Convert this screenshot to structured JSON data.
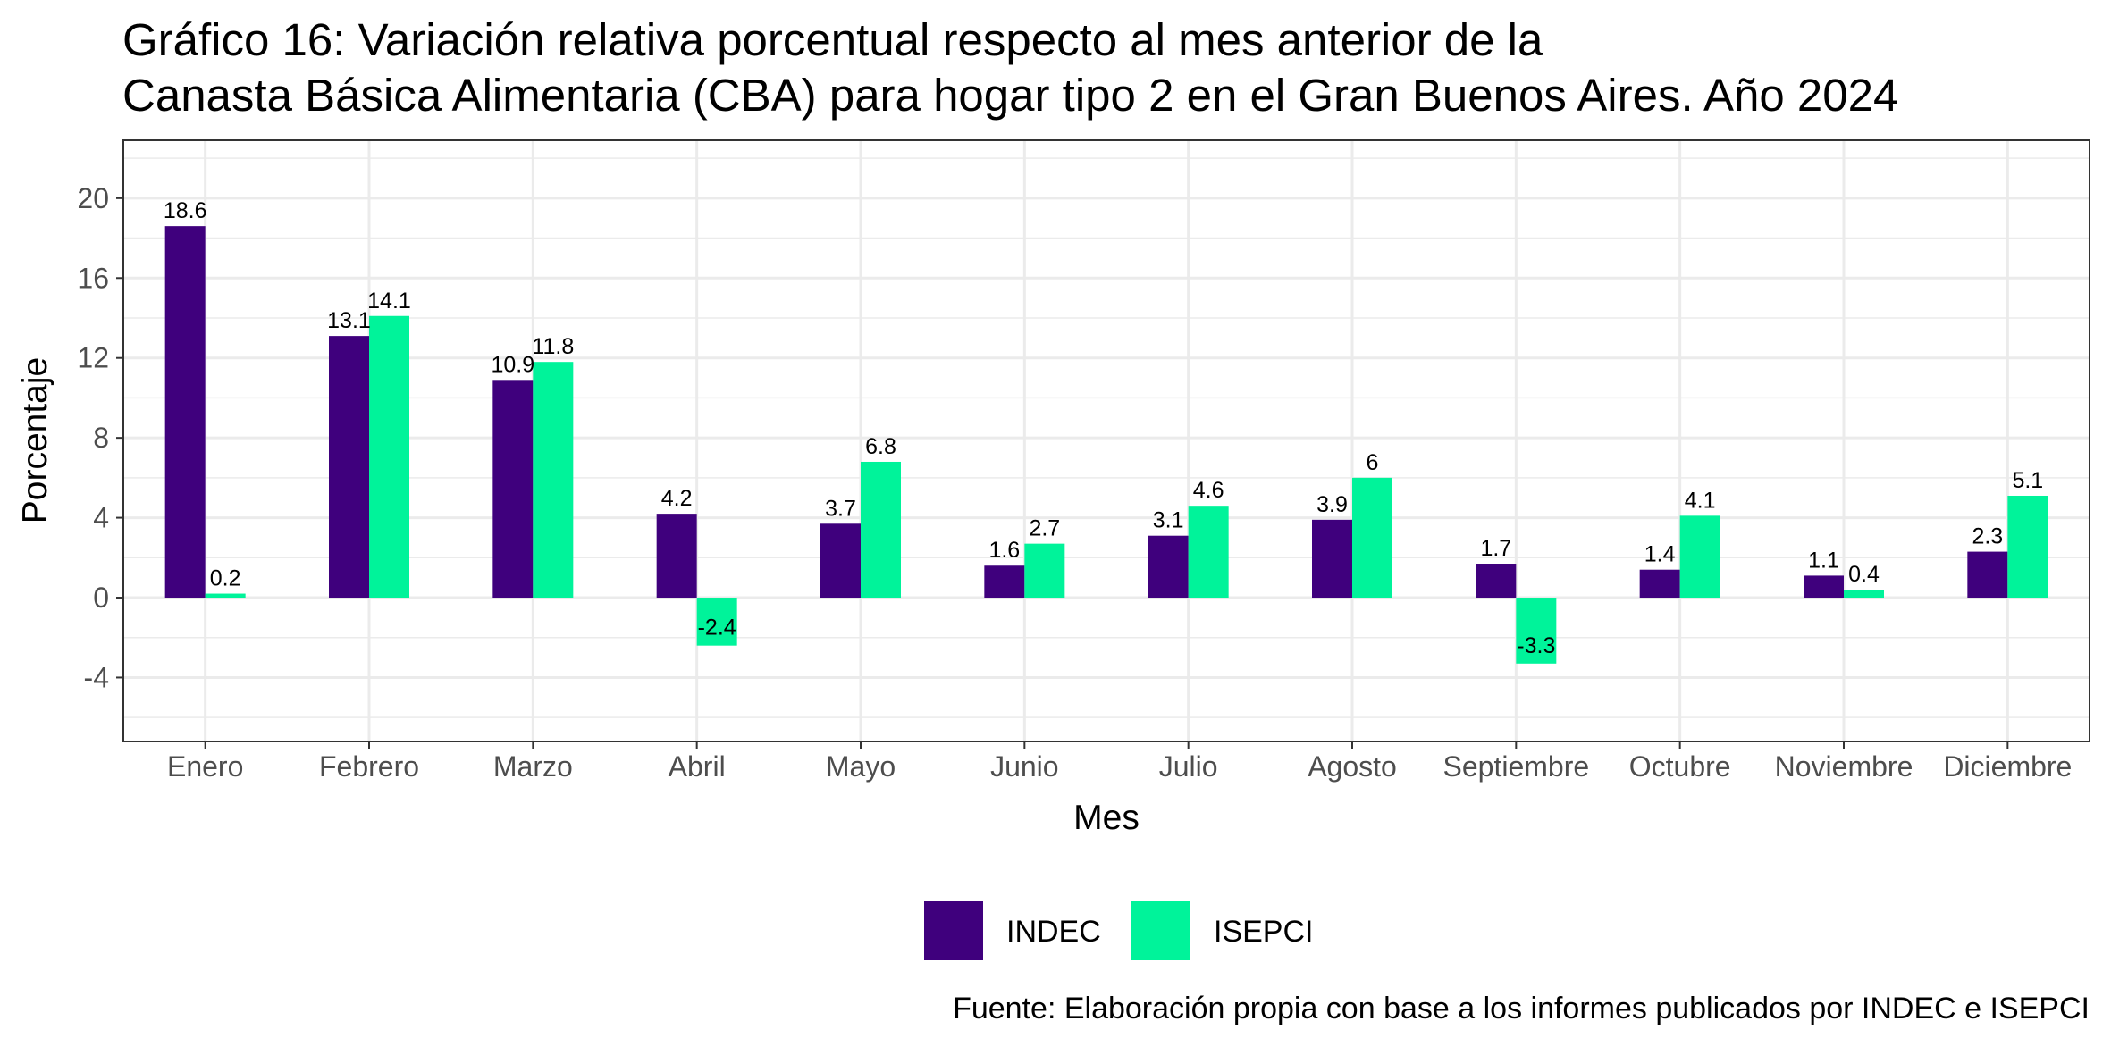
{
  "chart_data": {
    "type": "bar",
    "title_lines": [
      "Gráfico 16: Variación relativa porcentual respecto al mes anterior de la",
      "Canasta Básica Alimentaria (CBA) para hogar tipo 2 en el Gran Buenos Aires. Año 2024"
    ],
    "xlabel": "Mes",
    "ylabel": "Porcentaje",
    "categories": [
      "Enero",
      "Febrero",
      "Marzo",
      "Abril",
      "Mayo",
      "Junio",
      "Julio",
      "Agosto",
      "Septiembre",
      "Octubre",
      "Noviembre",
      "Diciembre"
    ],
    "series": [
      {
        "name": "INDEC",
        "color": "#3f007d",
        "values": [
          18.6,
          13.1,
          10.9,
          4.2,
          3.7,
          1.6,
          3.1,
          3.9,
          1.7,
          1.4,
          1.1,
          2.3
        ],
        "labels": [
          "18.6",
          "13.1",
          "10.9",
          "4.2",
          "3.7",
          "1.6",
          "3.1",
          "3.9",
          "1.7",
          "1.4",
          "1.1",
          "2.3"
        ]
      },
      {
        "name": "ISEPCI",
        "color": "#00f39a",
        "values": [
          0.2,
          14.1,
          11.8,
          -2.4,
          6.8,
          2.7,
          4.6,
          6,
          -3.3,
          4.1,
          0.4,
          5.1
        ],
        "labels": [
          "0.2",
          "14.1",
          "11.8",
          "-2.4",
          "6.8",
          "2.7",
          "4.6",
          "6",
          "-3.3",
          "4.1",
          "0.4",
          "5.1"
        ]
      }
    ],
    "yticks": [
      -4,
      0,
      4,
      8,
      12,
      16,
      20
    ],
    "ytick_labels": [
      "-4",
      "0",
      "4",
      "8",
      "12",
      "16",
      "20"
    ],
    "ylim": [
      -7.2,
      22.9
    ],
    "grid": true,
    "legend_position": "bottom",
    "caption": "Fuente: Elaboración propia con base a los informes publicados por INDEC e ISEPCI"
  }
}
